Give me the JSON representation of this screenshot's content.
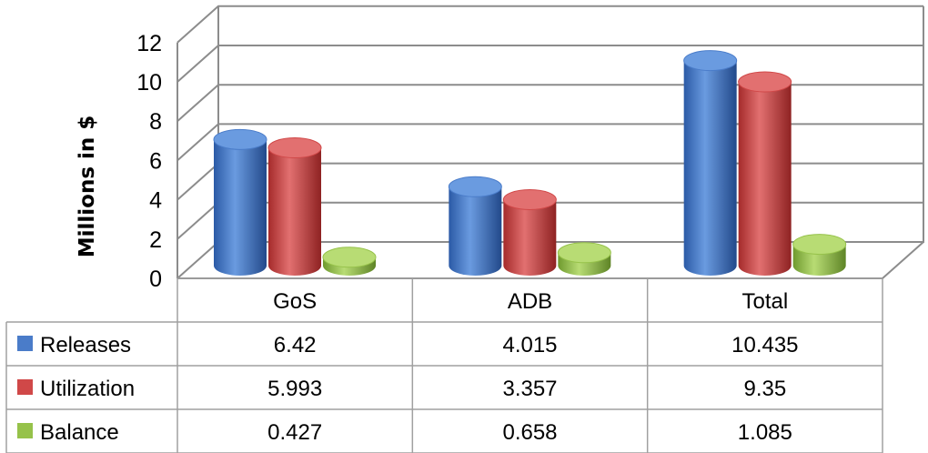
{
  "chart_data": {
    "type": "bar",
    "style": "3d-cylinder-with-data-table",
    "categories": [
      "GoS",
      "ADB",
      "Total"
    ],
    "series": [
      {
        "name": "Releases",
        "values": [
          6.42,
          4.015,
          10.435
        ],
        "color": "#4a7cc9"
      },
      {
        "name": "Utilization",
        "values": [
          5.993,
          3.357,
          9.35
        ],
        "color": "#d04848"
      },
      {
        "name": "Balance",
        "values": [
          0.427,
          0.658,
          1.085
        ],
        "color": "#96c24a"
      }
    ],
    "table_values": [
      [
        "6.42",
        "4.015",
        "10.435"
      ],
      [
        "5.993",
        "3.357",
        "9.35"
      ],
      [
        "0.427",
        "0.658",
        "1.085"
      ]
    ],
    "ylabel": "Millions in $",
    "ylim": [
      0,
      12
    ],
    "yticks": [
      "0",
      "2",
      "4",
      "6",
      "8",
      "10",
      "12"
    ],
    "grid": true,
    "legend": "data-table-left"
  }
}
